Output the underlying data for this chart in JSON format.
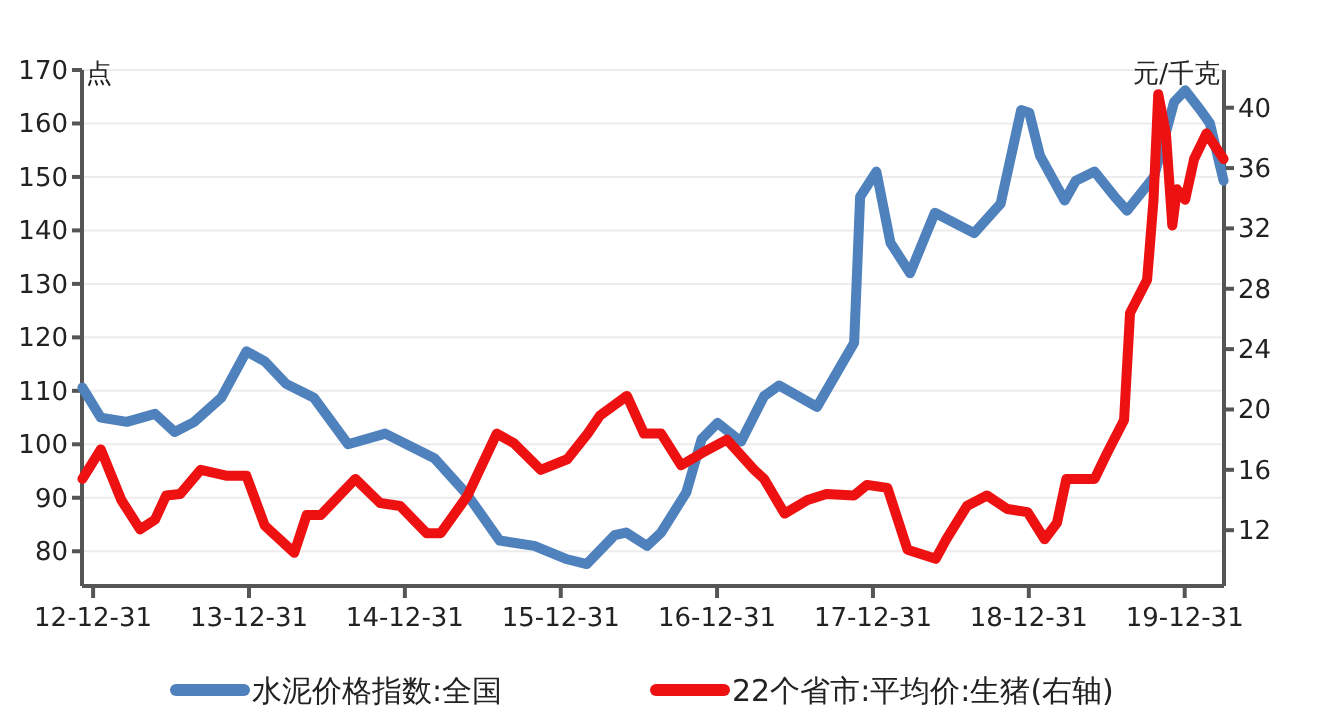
{
  "chart_data": {
    "type": "line",
    "ylabel": "点",
    "y2label": "元/千克",
    "xlim": [
      "2012-12-05",
      "2020-04-01"
    ],
    "ylim": [
      73.5,
      170
    ],
    "y2lim": [
      8.3,
      42.5
    ],
    "xticks": [
      {
        "value": "2012-12-31",
        "label": "12-12-31"
      },
      {
        "value": "2013-12-31",
        "label": "13-12-31"
      },
      {
        "value": "2014-12-31",
        "label": "14-12-31"
      },
      {
        "value": "2015-12-31",
        "label": "15-12-31"
      },
      {
        "value": "2016-12-31",
        "label": "16-12-31"
      },
      {
        "value": "2017-12-31",
        "label": "17-12-31"
      },
      {
        "value": "2018-12-31",
        "label": "18-12-31"
      },
      {
        "value": "2019-12-31",
        "label": "19-12-31"
      }
    ],
    "yticks": [
      80,
      90,
      100,
      110,
      120,
      130,
      140,
      150,
      160,
      170
    ],
    "y2ticks": [
      12,
      16,
      20,
      24,
      28,
      32,
      36,
      40
    ],
    "grid": "y",
    "legend": "bottom",
    "line_style": "solid",
    "marker": "none",
    "series": [
      {
        "name": "水泥价格指数:全国",
        "color": "#4f81bd",
        "x": [
          "2012-12-06",
          "2013-01-18",
          "2013-03-20",
          "2013-05-25",
          "2013-07-10",
          "2013-08-25",
          "2013-10-27",
          "2013-12-25",
          "2014-02-06",
          "2014-03-28",
          "2014-06-01",
          "2014-08-20",
          "2014-11-15",
          "2015-03-10",
          "2015-05-25",
          "2015-08-10",
          "2015-10-30",
          "2016-01-15",
          "2016-03-01",
          "2016-05-05",
          "2016-06-01",
          "2016-07-20",
          "2016-08-22",
          "2016-10-20",
          "2016-11-25",
          "2017-01-01",
          "2017-02-25",
          "2017-04-20",
          "2017-05-25",
          "2017-08-22",
          "2017-11-17",
          "2017-12-01",
          "2018-01-08",
          "2018-02-10",
          "2018-03-28",
          "2018-05-25",
          "2018-08-25",
          "2018-10-26",
          "2018-12-13",
          "2019-01-01",
          "2019-01-26",
          "2019-03-25",
          "2019-04-20",
          "2019-06-03",
          "2019-07-20",
          "2019-08-18",
          "2019-10-20",
          "2019-12-06",
          "2020-01-01",
          "2020-02-06",
          "2020-02-28",
          "2020-03-31"
        ],
        "values": [
          110.6,
          105,
          104.2,
          105.7,
          102.3,
          104.2,
          108.7,
          117.4,
          115.5,
          111.3,
          108.7,
          100,
          102,
          97.4,
          90.7,
          82,
          81,
          78.5,
          77.6,
          83,
          83.5,
          81,
          83.5,
          91,
          101,
          104,
          100.5,
          109,
          111,
          107,
          119,
          146.3,
          151,
          137.7,
          132,
          143.3,
          139.5,
          145,
          162.5,
          162,
          154,
          145.6,
          149.3,
          151,
          146.3,
          143.7,
          150,
          164,
          166.2,
          162.5,
          160,
          149.3
        ]
      },
      {
        "name": "22个省市:平均价:生猪(右轴)",
        "color": "#ee1111",
        "axis": "y2",
        "x": [
          "2012-12-06",
          "2013-01-18",
          "2013-03-07",
          "2013-04-20",
          "2013-05-25",
          "2013-06-20",
          "2013-07-23",
          "2013-09-09",
          "2013-11-10",
          "2013-12-25",
          "2014-02-06",
          "2014-04-16",
          "2014-05-15",
          "2014-06-17",
          "2014-09-06",
          "2014-11-03",
          "2014-12-20",
          "2015-02-20",
          "2015-03-25",
          "2015-05-27",
          "2015-08-03",
          "2015-09-13",
          "2015-11-14",
          "2016-01-15",
          "2016-03-03",
          "2016-04-01",
          "2016-06-03",
          "2016-07-13",
          "2016-08-22",
          "2016-10-08",
          "2016-11-25",
          "2017-01-23",
          "2017-03-28",
          "2017-04-20",
          "2017-06-07",
          "2017-07-31",
          "2017-09-13",
          "2017-11-17",
          "2017-12-17",
          "2018-02-03",
          "2018-03-22",
          "2018-05-27",
          "2018-06-21",
          "2018-08-08",
          "2018-09-24",
          "2018-11-11",
          "2018-12-28",
          "2019-02-06",
          "2019-03-07",
          "2019-03-29",
          "2019-06-03",
          "2019-07-02",
          "2019-08-11",
          "2019-08-25",
          "2019-10-04",
          "2019-10-19",
          "2019-10-30",
          "2019-11-17",
          "2019-12-02",
          "2019-12-13",
          "2020-01-01",
          "2020-01-22",
          "2020-02-20",
          "2020-03-31"
        ],
        "values": [
          15.4,
          17.35,
          14.0,
          12.05,
          12.7,
          14.3,
          14.4,
          16.0,
          15.6,
          15.6,
          12.3,
          10.5,
          13.0,
          13.0,
          15.4,
          13.8,
          13.6,
          11.8,
          11.8,
          14.3,
          18.4,
          17.75,
          16.0,
          16.7,
          18.4,
          19.6,
          20.9,
          18.4,
          18.4,
          16.3,
          17.1,
          18.0,
          16.0,
          15.4,
          13.1,
          14.0,
          14.4,
          14.3,
          15.0,
          14.8,
          10.7,
          10.1,
          11.4,
          13.6,
          14.3,
          13.4,
          13.2,
          11.4,
          12.5,
          15.4,
          15.4,
          17.1,
          19.3,
          26.4,
          28.6,
          33.9,
          40.9,
          38.3,
          32.2,
          34.6,
          33.9,
          36.6,
          38.3,
          36.6
        ]
      }
    ]
  }
}
